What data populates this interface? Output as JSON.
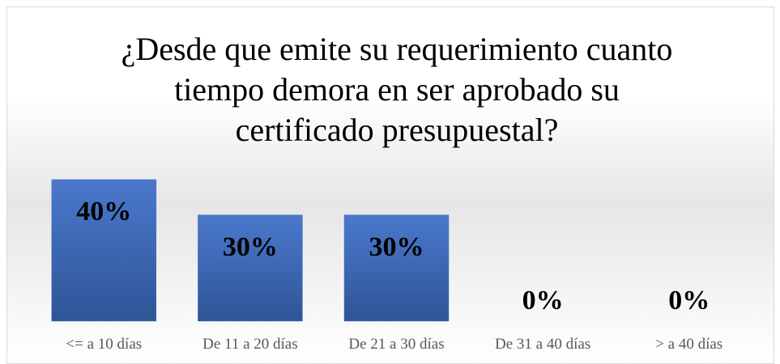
{
  "chart_data": {
    "type": "bar",
    "title": "¿Desde que emite su requerimiento cuanto tiempo demora en ser aprobado su certificado presupuestal?",
    "categories": [
      "<= a 10 días",
      "De 11 a 20 días",
      "De 21 a 30 días",
      "De 31 a 40 días",
      ">  a 40 días"
    ],
    "values": [
      40,
      30,
      30,
      0,
      0
    ],
    "value_labels": [
      "40%",
      "30%",
      "30%",
      "0%",
      "0%"
    ],
    "color": "#4472c4"
  }
}
